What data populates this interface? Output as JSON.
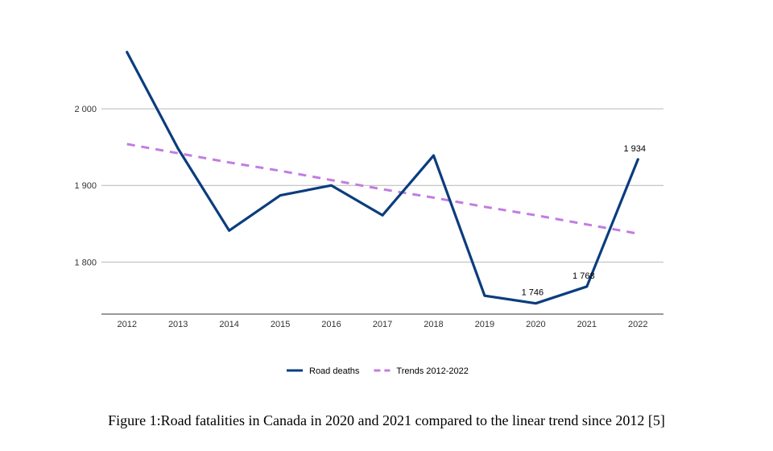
{
  "caption": "Figure 1:Road fatalities in Canada in 2020 and 2021 compared to the linear trend since 2012 [5]",
  "chart_data": {
    "type": "line",
    "x": [
      "2012",
      "2013",
      "2014",
      "2015",
      "2016",
      "2017",
      "2018",
      "2019",
      "2020",
      "2021",
      "2022"
    ],
    "series": [
      {
        "name": "Road deaths",
        "color": "#0b3d7e",
        "style": "solid",
        "values": [
          2074,
          1948,
          1841,
          1887,
          1900,
          1861,
          1939,
          1756,
          1746,
          1768,
          1934
        ]
      },
      {
        "name": "Trends 2012-2022",
        "color": "#c27ddf",
        "style": "dashed",
        "values": [
          1954,
          1942,
          1930,
          1919,
          1907,
          1895,
          1884,
          1872,
          1861,
          1849,
          1837
        ]
      }
    ],
    "data_labels": [
      {
        "series": 0,
        "index": 8,
        "text": "1 746"
      },
      {
        "series": 0,
        "index": 9,
        "text": "1 768"
      },
      {
        "series": 0,
        "index": 10,
        "text": "1 934"
      }
    ],
    "yticks": [
      {
        "value": 1800,
        "label": "1 800"
      },
      {
        "value": 1900,
        "label": "1 900"
      },
      {
        "value": 2000,
        "label": "2 000"
      }
    ],
    "ylim": [
      1732,
      2100
    ],
    "title": "",
    "xlabel": "",
    "ylabel": "",
    "grid": true,
    "legend_position": "bottom"
  }
}
